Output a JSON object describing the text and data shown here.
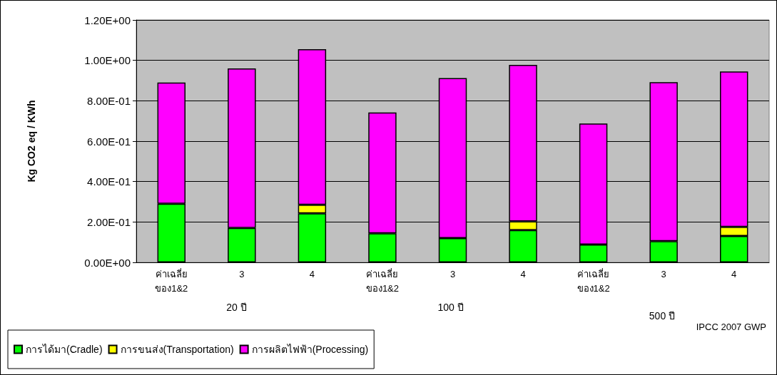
{
  "chart_data": {
    "type": "bar",
    "stacked": true,
    "ylabel": "Kg CO2 eq / KWh",
    "categories": [
      "ค่าเฉลี่ย ของ1&2",
      "3",
      "4",
      "ค่าเฉลี่ย ของ1&2",
      "3",
      "4",
      "ค่าเฉลี่ย ของ1&2",
      "3",
      "4"
    ],
    "series": [
      {
        "name": "การได้มา(Cradle)",
        "color": "#00ff00",
        "values": [
          0.29,
          0.17,
          0.243,
          0.144,
          0.12,
          0.16,
          0.088,
          0.105,
          0.131
        ]
      },
      {
        "name": "การขนส่ง(Transportation)",
        "color": "#ffff00",
        "values": [
          null,
          null,
          0.042,
          null,
          null,
          0.043,
          null,
          null,
          0.045
        ]
      },
      {
        "name": "การผลิตไฟฟ้า(Processing)",
        "color": "#ff00ff",
        "values": [
          0.6,
          0.79,
          0.77,
          0.598,
          0.792,
          0.775,
          0.599,
          0.787,
          0.769
        ]
      }
    ],
    "ylim": [
      0,
      1.2
    ],
    "yticks": [
      {
        "value": 0,
        "label": "0.00E+00"
      },
      {
        "value": 0.2,
        "label": "2.00E-01"
      },
      {
        "value": 0.4,
        "label": "4.00E-01"
      },
      {
        "value": 0.6,
        "label": "6.00E-01"
      },
      {
        "value": 0.8,
        "label": "8.00E-01"
      },
      {
        "value": 1,
        "label": "1.00E+00"
      },
      {
        "value": 1.2,
        "label": "1.20E+00"
      }
    ],
    "annotations": [
      "20 ปี",
      "100 ปี",
      "500 ปี",
      "IPCC 2007 GWP"
    ],
    "grid": "y",
    "legend": "bottom left"
  }
}
